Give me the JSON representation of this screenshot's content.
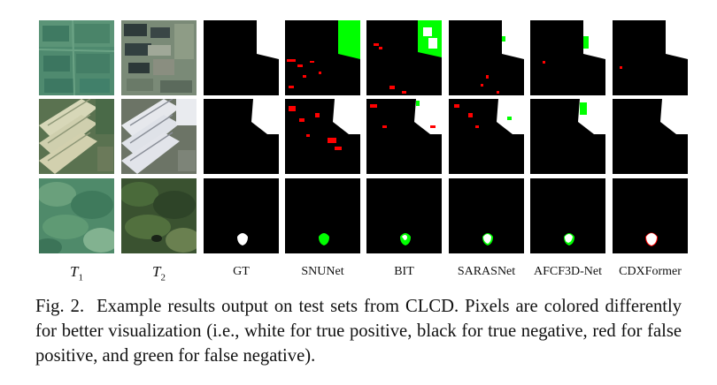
{
  "columns": [
    {
      "label": "T",
      "sub": "1"
    },
    {
      "label": "T",
      "sub": "2"
    },
    {
      "label": "GT"
    },
    {
      "label": "SNUNet"
    },
    {
      "label": "BIT"
    },
    {
      "label": "SARASNet"
    },
    {
      "label": "AFCF3D-Net"
    },
    {
      "label": "CDXFormer"
    }
  ],
  "caption": {
    "fig_label": "Fig. 2.",
    "text": "Example results output on test sets from CLCD. Pixels are colored differently for better visualization (i.e., white for true positive, black for true negative, red for false positive, and green for false negative)."
  },
  "colors": {
    "true_positive": "#ffffff",
    "true_negative": "#000000",
    "false_positive": "#ff0000",
    "false_negative": "#00ff00"
  }
}
